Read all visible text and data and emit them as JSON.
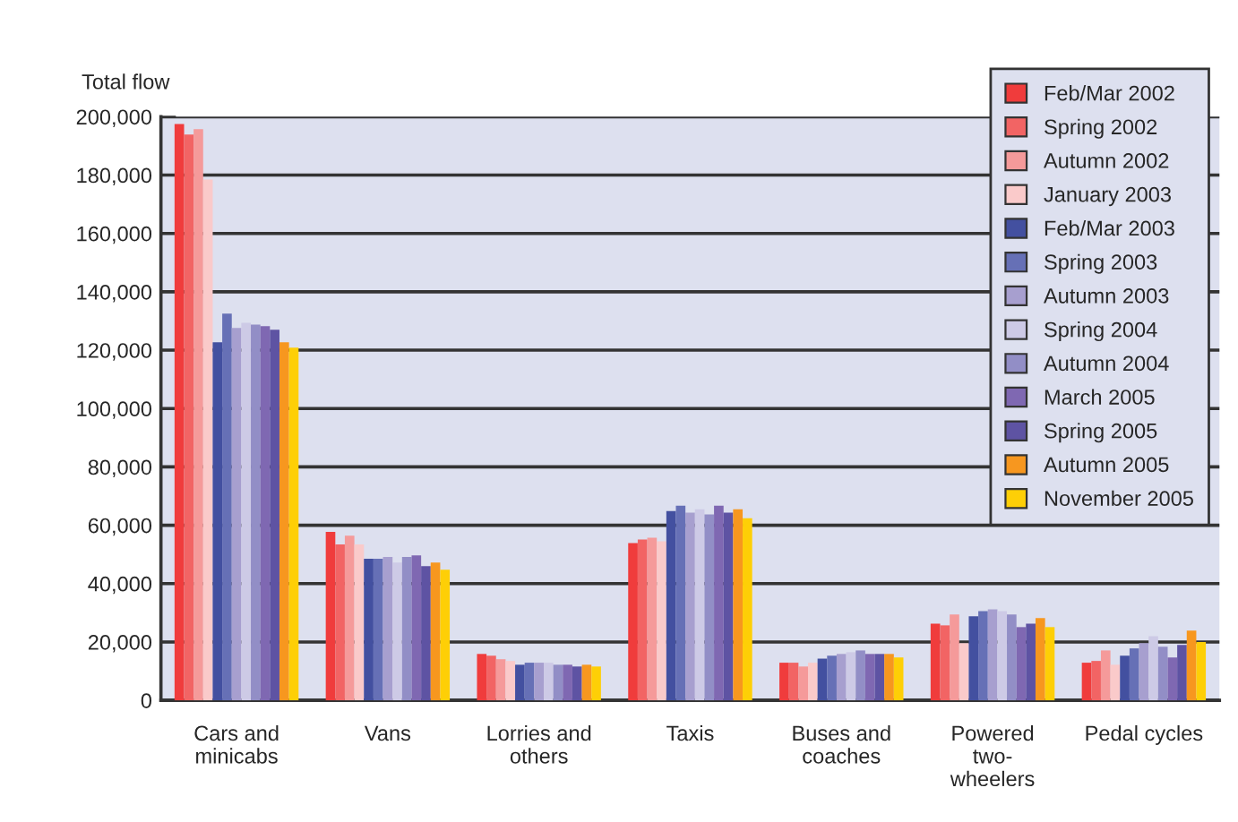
{
  "chart_data": {
    "type": "bar",
    "ylabel": "Total flow",
    "categories": [
      "Cars and\nminicabs",
      "Vans",
      "Lorries and\nothers",
      "Taxis",
      "Buses and\ncoaches",
      "Powered\ntwo-\nwheelers",
      "Pedal cycles"
    ],
    "series": [
      {
        "name": "Feb/Mar 2002",
        "color": "#f03c3c",
        "values": [
          197500,
          57700,
          15900,
          53900,
          12900,
          26300,
          12900
        ]
      },
      {
        "name": "Spring 2002",
        "color": "#f26464",
        "values": [
          193900,
          53400,
          15300,
          55100,
          12900,
          25700,
          13500
        ]
      },
      {
        "name": "Autumn 2002",
        "color": "#f59a9a",
        "values": [
          195700,
          56400,
          14100,
          55700,
          11600,
          29400,
          17100
        ]
      },
      {
        "name": "January 2003",
        "color": "#facaca",
        "values": [
          178500,
          53400,
          13500,
          54500,
          12900,
          19600,
          12200
        ]
      },
      {
        "name": "Feb/Mar 2003",
        "color": "#4350a0",
        "values": [
          122700,
          48500,
          12200,
          64900,
          14300,
          28800,
          15300
        ]
      },
      {
        "name": "Spring 2003",
        "color": "#6670b6",
        "values": [
          132500,
          48500,
          12900,
          66700,
          15300,
          30600,
          17800
        ]
      },
      {
        "name": "Autumn 2003",
        "color": "#a79fcf",
        "values": [
          127600,
          49100,
          12900,
          64300,
          15900,
          31200,
          19600
        ]
      },
      {
        "name": "Spring 2004",
        "color": "#cdcae6",
        "values": [
          129400,
          47200,
          12900,
          65500,
          16500,
          30600,
          22000
        ]
      },
      {
        "name": "Autumn 2004",
        "color": "#928ec6",
        "values": [
          128800,
          49100,
          12200,
          63700,
          17100,
          29400,
          18400
        ]
      },
      {
        "name": "March 2005",
        "color": "#7f68b2",
        "values": [
          128200,
          49700,
          12200,
          66700,
          15900,
          25100,
          14700
        ]
      },
      {
        "name": "Spring 2005",
        "color": "#5e53a3",
        "values": [
          127000,
          46000,
          11600,
          64300,
          15900,
          26300,
          19000
        ]
      },
      {
        "name": "Autumn 2005",
        "color": "#f7971f",
        "values": [
          122700,
          47200,
          12200,
          65500,
          15900,
          28200,
          23900
        ]
      },
      {
        "name": "November 2005",
        "color": "#fecf06",
        "values": [
          120900,
          44800,
          11600,
          62400,
          14700,
          25100,
          20000
        ]
      }
    ],
    "ylim": [
      0,
      200000
    ],
    "yticks": [
      {
        "value": 0,
        "label": "0"
      },
      {
        "value": 20000,
        "label": "20,000"
      },
      {
        "value": 40000,
        "label": "40,000"
      },
      {
        "value": 60000,
        "label": "60,000"
      },
      {
        "value": 80000,
        "label": "80,000"
      },
      {
        "value": 100000,
        "label": "100,000"
      },
      {
        "value": 120000,
        "label": "120,000"
      },
      {
        "value": 140000,
        "label": "140,000"
      },
      {
        "value": 160000,
        "label": "160,000"
      },
      {
        "value": 180000,
        "label": "180,000"
      },
      {
        "value": 200000,
        "label": "200,000"
      }
    ],
    "grid": "y",
    "legend": "top right"
  }
}
